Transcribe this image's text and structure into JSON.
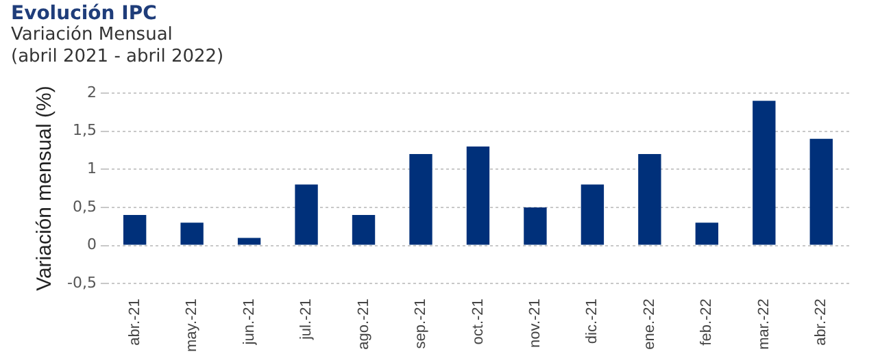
{
  "chart_data": {
    "type": "bar",
    "title": "Evolución IPC",
    "subtitle": "Variación Mensual",
    "annotations": [
      "(abril 2021 - abril 2022)"
    ],
    "ylabel": "Variación mensual (%)",
    "categories": [
      "abr.-21",
      "may.-21",
      "jun.-21",
      "jul.-21",
      "ago.-21",
      "sep.-21",
      "oct.-21",
      "nov.-21",
      "dic.-21",
      "ene.-22",
      "feb.-22",
      "mar.-22",
      "abr.-22"
    ],
    "values": [
      0.4,
      0.3,
      0.1,
      0.8,
      0.4,
      1.2,
      1.3,
      0.5,
      0.8,
      1.2,
      0.3,
      1.9,
      1.4
    ],
    "color": "#00307a",
    "ylim": [
      -0.5,
      2
    ],
    "yticks": [
      {
        "value": -0.5,
        "label": "-0,5"
      },
      0,
      {
        "value": 0.5,
        "label": "0,5"
      },
      1,
      {
        "value": 1.5,
        "label": "1,5"
      },
      2
    ],
    "grid": "y",
    "legend": false
  }
}
